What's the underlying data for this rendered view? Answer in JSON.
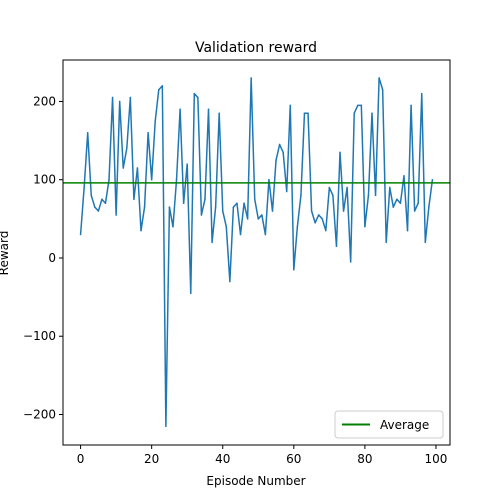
{
  "chart_data": {
    "type": "line",
    "title": "Validation reward",
    "xlabel": "Episode Number",
    "ylabel": "Reward",
    "xlim": [
      -4.95,
      103.95
    ],
    "ylim": [
      -239,
      253
    ],
    "xticks": [
      0,
      20,
      40,
      60,
      80,
      100
    ],
    "yticks": [
      -200,
      -100,
      0,
      100,
      200
    ],
    "grid": false,
    "legend_position": "lower right",
    "series": [
      {
        "color": "#1f77b4",
        "x": [
          0,
          1,
          2,
          3,
          4,
          5,
          6,
          7,
          8,
          9,
          10,
          11,
          12,
          13,
          14,
          15,
          16,
          17,
          18,
          19,
          20,
          21,
          22,
          23,
          24,
          25,
          26,
          27,
          28,
          29,
          30,
          31,
          32,
          33,
          34,
          35,
          36,
          37,
          38,
          39,
          40,
          41,
          42,
          43,
          44,
          45,
          46,
          47,
          48,
          49,
          50,
          51,
          52,
          53,
          54,
          55,
          56,
          57,
          58,
          59,
          60,
          61,
          62,
          63,
          64,
          65,
          66,
          67,
          68,
          69,
          70,
          71,
          72,
          73,
          74,
          75,
          76,
          77,
          78,
          79,
          80,
          81,
          82,
          83,
          84,
          85,
          86,
          87,
          88,
          89,
          90,
          91,
          92,
          93,
          94,
          95,
          96,
          97,
          98,
          99
        ],
        "values": [
          30,
          90,
          160,
          80,
          65,
          60,
          75,
          70,
          100,
          205,
          55,
          200,
          115,
          140,
          205,
          75,
          115,
          35,
          65,
          160,
          100,
          175,
          215,
          220,
          -215,
          65,
          40,
          100,
          190,
          70,
          120,
          -45,
          210,
          205,
          55,
          75,
          190,
          20,
          65,
          185,
          60,
          40,
          -30,
          65,
          70,
          30,
          70,
          50,
          230,
          75,
          50,
          55,
          30,
          100,
          60,
          125,
          145,
          135,
          85,
          195,
          -15,
          40,
          80,
          185,
          185,
          60,
          45,
          55,
          50,
          35,
          90,
          80,
          15,
          135,
          60,
          90,
          -5,
          185,
          195,
          195,
          40,
          80,
          185,
          80,
          230,
          215,
          20,
          90,
          65,
          75,
          70,
          105,
          35,
          195,
          60,
          70,
          210,
          20,
          65,
          100
        ]
      },
      {
        "name": "Average",
        "color": "#008000",
        "type": "hline",
        "value": 96
      }
    ]
  },
  "legend": {
    "entries": [
      {
        "label": "Average",
        "color": "#008000"
      }
    ]
  }
}
